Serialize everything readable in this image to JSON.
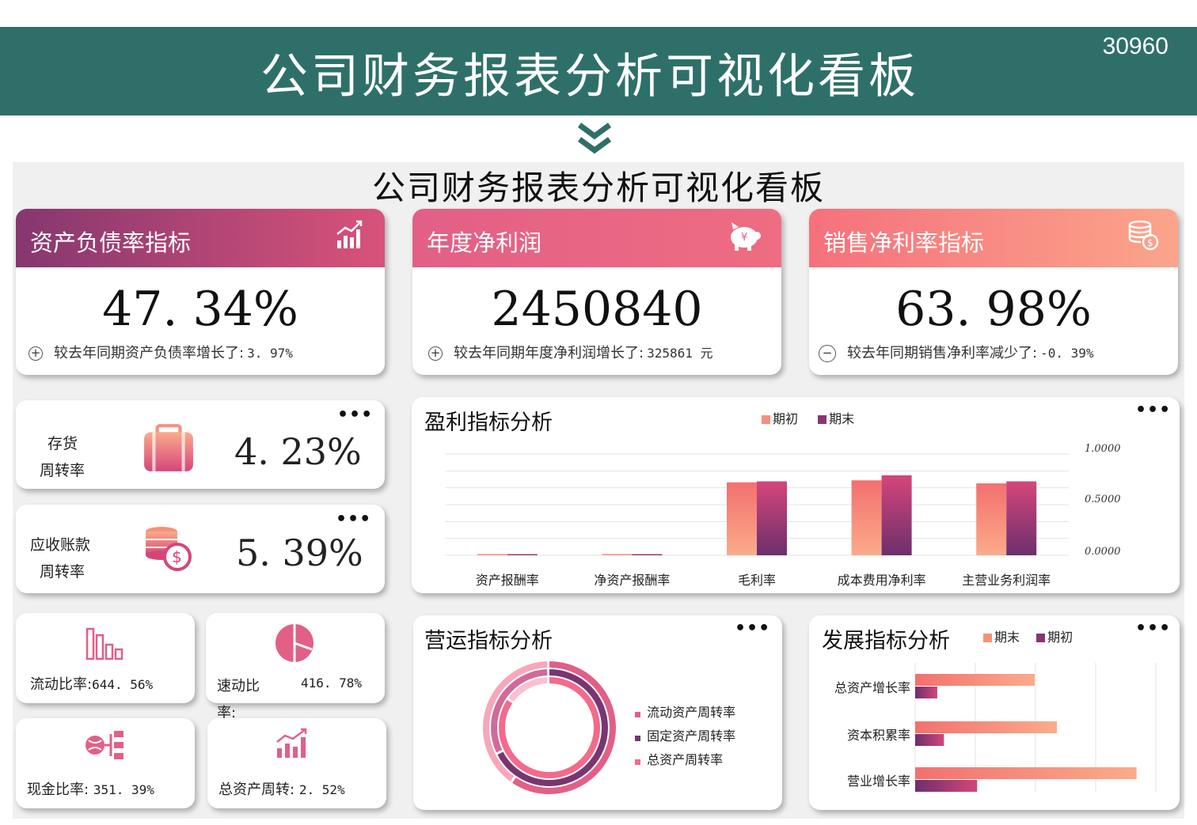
{
  "banner": {
    "title": "公司财务报表分析可视化看板",
    "code": "30960"
  },
  "board_title": "公司财务报表分析可视化看板",
  "colors": {
    "teal": "#2e7069",
    "light": "#f7917a",
    "dark": "#7a3570",
    "pink": "#e25f86"
  },
  "kpis": [
    {
      "label": "资产负债率指标",
      "icon": "bar-chart-up-icon",
      "value": "47. 34%",
      "sign": "+",
      "compare": "较去年同期资产负债率增长了:",
      "delta": "3. 97%"
    },
    {
      "label": "年度净利润",
      "icon": "piggy-bank-icon",
      "value": "2450840",
      "sign": "+",
      "compare": "较去年同期年度净利润增长了:",
      "delta": "325861 元"
    },
    {
      "label": "销售净利率指标",
      "icon": "coin-stack-icon",
      "value": "63. 98%",
      "sign": "−",
      "compare": "较去年同期销售净利率减少了:",
      "delta": "-0. 39%"
    }
  ],
  "turnover": [
    {
      "label_line1": "存货",
      "label_line2": "周转率",
      "icon": "suitcase-icon",
      "value": "4. 23%"
    },
    {
      "label_line1": "应收账款",
      "label_line2": "周转率",
      "icon": "coins-dollar-icon",
      "value": "5. 39%"
    }
  ],
  "small_cards": [
    {
      "icon": "bar-outline-icon",
      "label": "流动比率:",
      "value": "644. 56%"
    },
    {
      "icon": "pie-icon",
      "label_line1": "速动比",
      "label_line2": "率:",
      "value": "416. 78%"
    },
    {
      "icon": "piggy-tree-icon",
      "label": "现金比率:",
      "value": "351. 39%"
    },
    {
      "icon": "growth-bars-icon",
      "label": "总资产周转:",
      "value": "2. 52%"
    }
  ],
  "more_label": "•••",
  "profit": {
    "title": "盈利指标分析",
    "legend": [
      "期初",
      "期末"
    ],
    "ticks": [
      "1.0000",
      "0.5000",
      "0.0000"
    ],
    "chart_data": {
      "type": "bar",
      "categories": [
        "资产报酬率",
        "净资产报酬率",
        "毛利率",
        "成本费用净利率",
        "主营业务利润率"
      ],
      "series": [
        {
          "name": "期初",
          "values": [
            0.01,
            0.01,
            0.72,
            0.74,
            0.71
          ]
        },
        {
          "name": "期末",
          "values": [
            0.01,
            0.01,
            0.73,
            0.79,
            0.73
          ]
        }
      ],
      "ylim": [
        0,
        1.0
      ]
    }
  },
  "operation": {
    "title": "营运指标分析",
    "legend": [
      "流动资产周转率",
      "固定资产周转率",
      "总资产周转率"
    ],
    "chart_data": {
      "type": "pie",
      "rings": [
        {
          "name": "流动资产周转率",
          "values": [
            0.6,
            0.4
          ]
        },
        {
          "name": "固定资产周转率",
          "values": [
            0.68,
            0.32
          ]
        },
        {
          "name": "总资产周转率",
          "values": [
            0.85,
            0.15
          ]
        }
      ]
    }
  },
  "growth": {
    "title": "发展指标分析",
    "legend": [
      "期末",
      "期初"
    ],
    "chart_data": {
      "type": "bar",
      "categories": [
        "总资产增长率",
        "资本积累率",
        "营业增长率"
      ],
      "series": [
        {
          "name": "期末",
          "values": [
            0.54,
            0.64,
            1.0
          ]
        },
        {
          "name": "期初",
          "values": [
            0.1,
            0.13,
            0.28
          ]
        }
      ]
    }
  }
}
